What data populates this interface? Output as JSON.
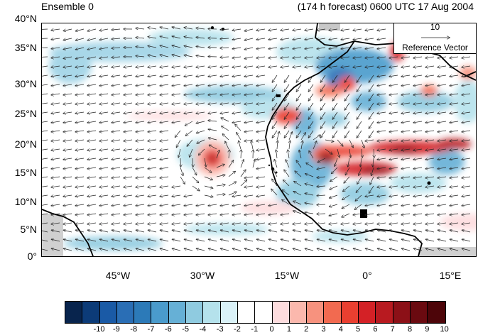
{
  "title": {
    "left": "Ensemble 0",
    "right": "(174 h forecast) 0600 UTC 17 Aug 2004"
  },
  "axes": {
    "lat_labels": [
      "40°N",
      "35°N",
      "30°N",
      "25°N",
      "20°N",
      "15°N",
      "10°N",
      "5°N",
      "0°"
    ],
    "lon_labels": [
      "45°W",
      "30°W",
      "15°W",
      "0°",
      "15°E"
    ]
  },
  "reference_vector": {
    "value": "10",
    "label": "Reference Vector"
  },
  "colorbar": {
    "labels": [
      "-10",
      "-9",
      "-8",
      "-7",
      "-6",
      "-5",
      "-4",
      "-3",
      "-2",
      "-1",
      "0",
      "1",
      "2",
      "3",
      "4",
      "5",
      "6",
      "7",
      "8",
      "9",
      "10"
    ],
    "colors": [
      "#08244d",
      "#0c3b78",
      "#1a5aa6",
      "#2a6eb5",
      "#2c7ab8",
      "#4a9bcc",
      "#66b0d6",
      "#8fcbe0",
      "#b5e2ec",
      "#daf2f8",
      "#ffffff",
      "#ffffff",
      "#fddcde",
      "#fbb8ad",
      "#f7927e",
      "#f26a50",
      "#ea3f30",
      "#d42126",
      "#b81a20",
      "#8c1017",
      "#6a0a10",
      "#4d0509"
    ]
  }
}
